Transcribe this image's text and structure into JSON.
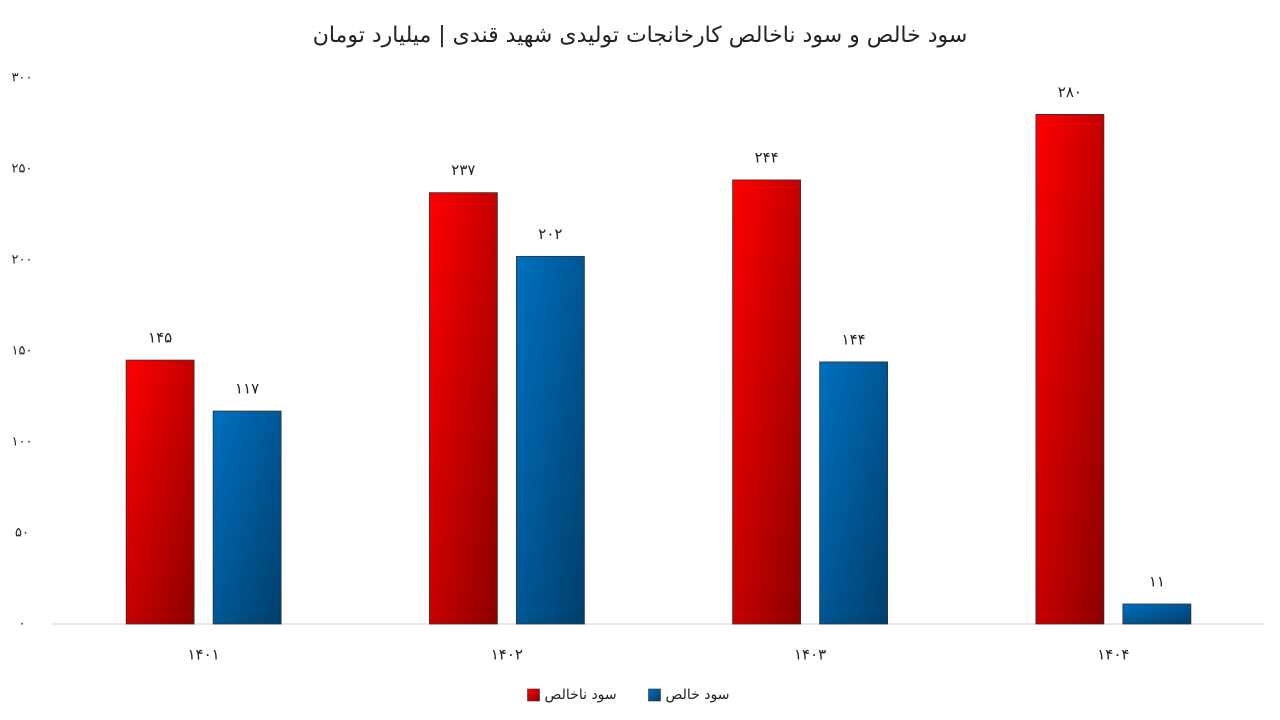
{
  "chart_data": {
    "type": "bar",
    "title": "سود خالص و سود ناخالص کارخانجات تولیدی شهید قندی | میلیارد تومان",
    "categories": [
      "۱۴۰۱",
      "۱۴۰۲",
      "۱۴۰۳",
      "۱۴۰۴"
    ],
    "series": [
      {
        "name": "سود ناخالص",
        "color": "#ff0000",
        "values": [
          145,
          237,
          244,
          280
        ],
        "value_labels": [
          "۱۴۵",
          "۲۳۷",
          "۲۴۴",
          "۲۸۰"
        ]
      },
      {
        "name": "سود خالص",
        "color": "#0070c0",
        "values": [
          117,
          202,
          144,
          11
        ],
        "value_labels": [
          "۱۱۷",
          "۲۰۲",
          "۱۴۴",
          "۱۱"
        ]
      }
    ],
    "ylim": [
      0,
      300
    ],
    "yticks": [
      {
        "value": 0,
        "label": "۰"
      },
      {
        "value": 50,
        "label": "۵۰"
      },
      {
        "value": 100,
        "label": "۱۰۰"
      },
      {
        "value": 150,
        "label": "۱۵۰"
      },
      {
        "value": 200,
        "label": "۲۰۰"
      },
      {
        "value": 250,
        "label": "۲۵۰"
      },
      {
        "value": 300,
        "label": "۳۰۰"
      }
    ],
    "grid": false,
    "legend": "bottom"
  }
}
